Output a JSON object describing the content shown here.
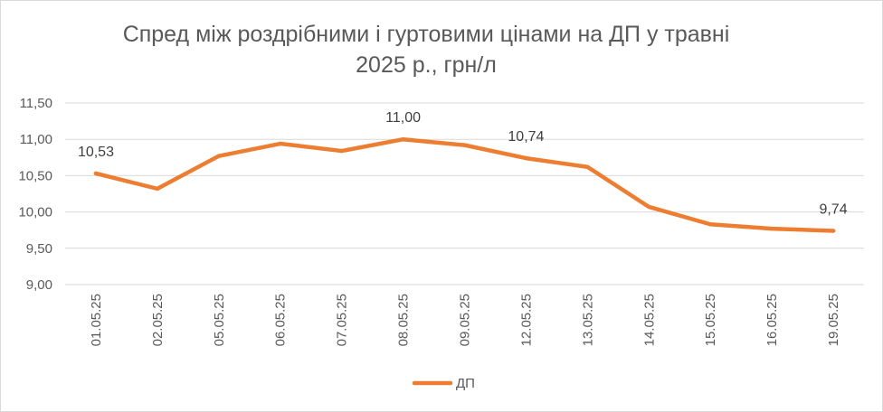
{
  "chart_data": {
    "type": "line",
    "title": [
      "Спред між роздрібними і гуртовими цінами на ДП у травні",
      "2025 р., грн/л"
    ],
    "categories": [
      "01.05.25",
      "02.05.25",
      "05.05.25",
      "06.05.25",
      "07.05.25",
      "08.05.25",
      "09.05.25",
      "12.05.25",
      "13.05.25",
      "14.05.25",
      "15.05.25",
      "16.05.25",
      "19.05.25"
    ],
    "series": [
      {
        "name": "ДП",
        "color": "#ed7d31",
        "values": [
          10.53,
          10.32,
          10.77,
          10.94,
          10.84,
          11.0,
          10.92,
          10.74,
          10.62,
          10.07,
          9.83,
          9.77,
          9.74
        ]
      }
    ],
    "data_labels": [
      {
        "index": 0,
        "text": "10,53"
      },
      {
        "index": 5,
        "text": "11,00"
      },
      {
        "index": 7,
        "text": "10,74"
      },
      {
        "index": 12,
        "text": "9,74"
      }
    ],
    "y_ticks": [
      "9,00",
      "9,50",
      "10,00",
      "10,50",
      "11,00",
      "11,50"
    ],
    "ylim": [
      9.0,
      11.5
    ],
    "xlabel": "",
    "ylabel": "",
    "grid": true,
    "legend_position": "bottom"
  }
}
